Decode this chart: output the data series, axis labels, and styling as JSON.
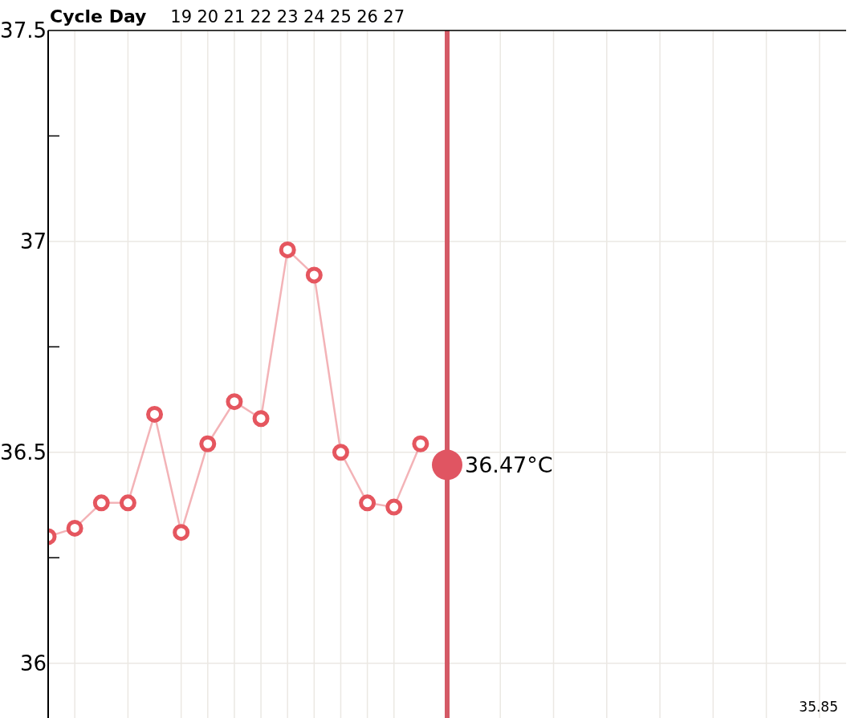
{
  "chart_data": {
    "type": "line",
    "xlabel": "Cycle Day",
    "x": [
      14,
      15,
      16,
      17,
      18,
      19,
      20,
      21,
      22,
      23,
      24,
      25,
      26,
      27,
      28
    ],
    "series": [
      {
        "color": "#e5565f",
        "values": [
          36.3,
          36.32,
          36.38,
          36.38,
          36.59,
          36.31,
          36.52,
          36.62,
          36.58,
          36.98,
          36.92,
          36.5,
          36.38,
          36.37,
          36.52
        ]
      },
      {
        "type": "scatter",
        "x": [
          29
        ],
        "color": "#e05562",
        "values": [
          36.47
        ],
        "value_labels": [
          "36.47°C"
        ]
      }
    ],
    "xlim": [
      14,
      44
    ],
    "xticks": [
      {
        "value": 15,
        "label": null
      },
      {
        "value": 17,
        "label": null
      },
      19,
      20,
      21,
      22,
      23,
      24,
      25,
      26,
      27,
      {
        "value": 29,
        "label": null
      },
      {
        "value": 31,
        "label": null
      },
      {
        "value": 33,
        "label": null
      },
      {
        "value": 35,
        "label": null
      },
      {
        "value": 37,
        "label": null
      },
      {
        "value": 39,
        "label": null
      },
      {
        "value": 41,
        "label": null
      },
      {
        "value": 43,
        "label": null
      }
    ],
    "ylim": [
      35.87,
      37.5
    ],
    "yticks": [
      36,
      {
        "value": 36.25,
        "label": null
      },
      36.5,
      {
        "value": 36.75,
        "label": null
      },
      37,
      {
        "value": 37.25,
        "label": null
      },
      37.5
    ],
    "ref_lines": [
      {
        "axis": "x",
        "value": 29,
        "color": "#d45a66"
      }
    ],
    "annotations": [
      "35.85"
    ],
    "grid": true,
    "marker": "circle"
  }
}
